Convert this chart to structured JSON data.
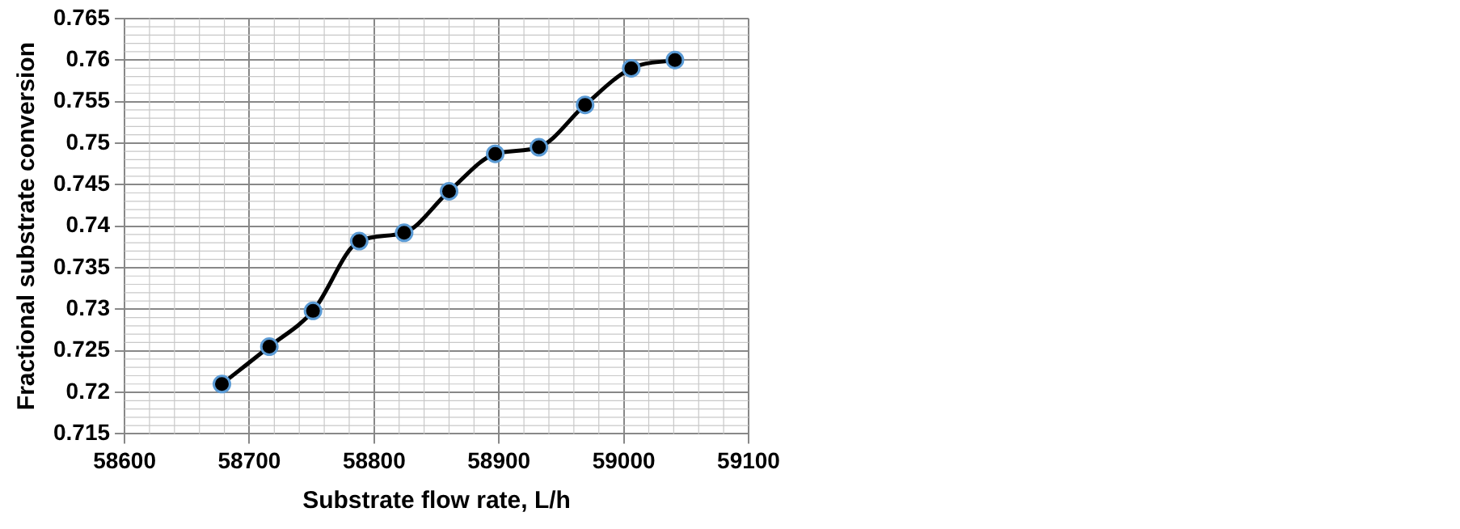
{
  "chart_data": {
    "type": "line",
    "xlabel": "Substrate flow rate, L/h",
    "ylabel": "Fractional substrate conversion",
    "x": [
      58678,
      58716,
      58751,
      58788,
      58824,
      58860,
      58897,
      58932,
      58969,
      59006,
      59041
    ],
    "series": [
      {
        "color": "#000000",
        "values": [
          0.721,
          0.7255,
          0.7298,
          0.7382,
          0.7392,
          0.7442,
          0.7487,
          0.7495,
          0.7546,
          0.759,
          0.76
        ]
      }
    ],
    "xlim": [
      58600,
      59100
    ],
    "xticks": [
      58600,
      58700,
      58800,
      58900,
      59000,
      59100
    ],
    "ylim": [
      0.715,
      0.765
    ],
    "yticks": [
      0.715,
      0.72,
      0.725,
      0.73,
      0.735,
      0.74,
      0.745,
      0.75,
      0.755,
      0.76,
      0.765
    ],
    "grid": true,
    "legend": false,
    "marker": "circle",
    "line_style": "solid"
  }
}
